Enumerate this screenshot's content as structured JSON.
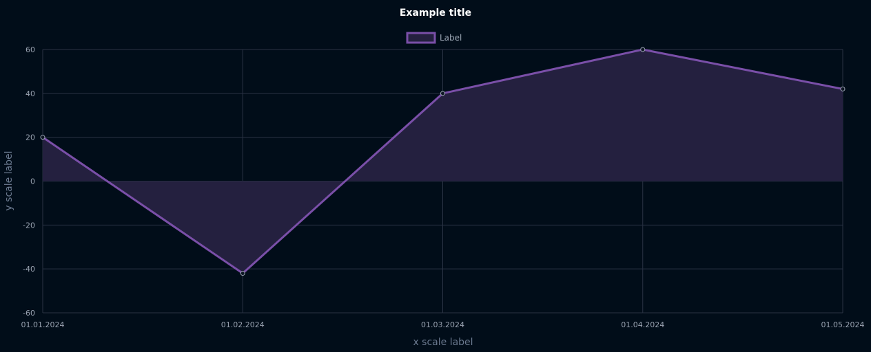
{
  "chart_data": {
    "type": "area",
    "title": "Example title",
    "xlabel": "x scale label",
    "ylabel": "y scale label",
    "x": [
      "01.01.2024",
      "01.02.2024",
      "01.03.2024",
      "01.04.2024",
      "01.05.2024"
    ],
    "ylim": [
      -60,
      60
    ],
    "yticks": [
      60,
      40,
      20,
      0,
      -20,
      -40,
      -60
    ],
    "grid": true,
    "legend_position": "top-center",
    "series": [
      {
        "name": "Label",
        "values": [
          20,
          -42,
          40,
          60,
          42
        ],
        "color": "#7a4fa8",
        "fill": "#24203f"
      }
    ]
  }
}
